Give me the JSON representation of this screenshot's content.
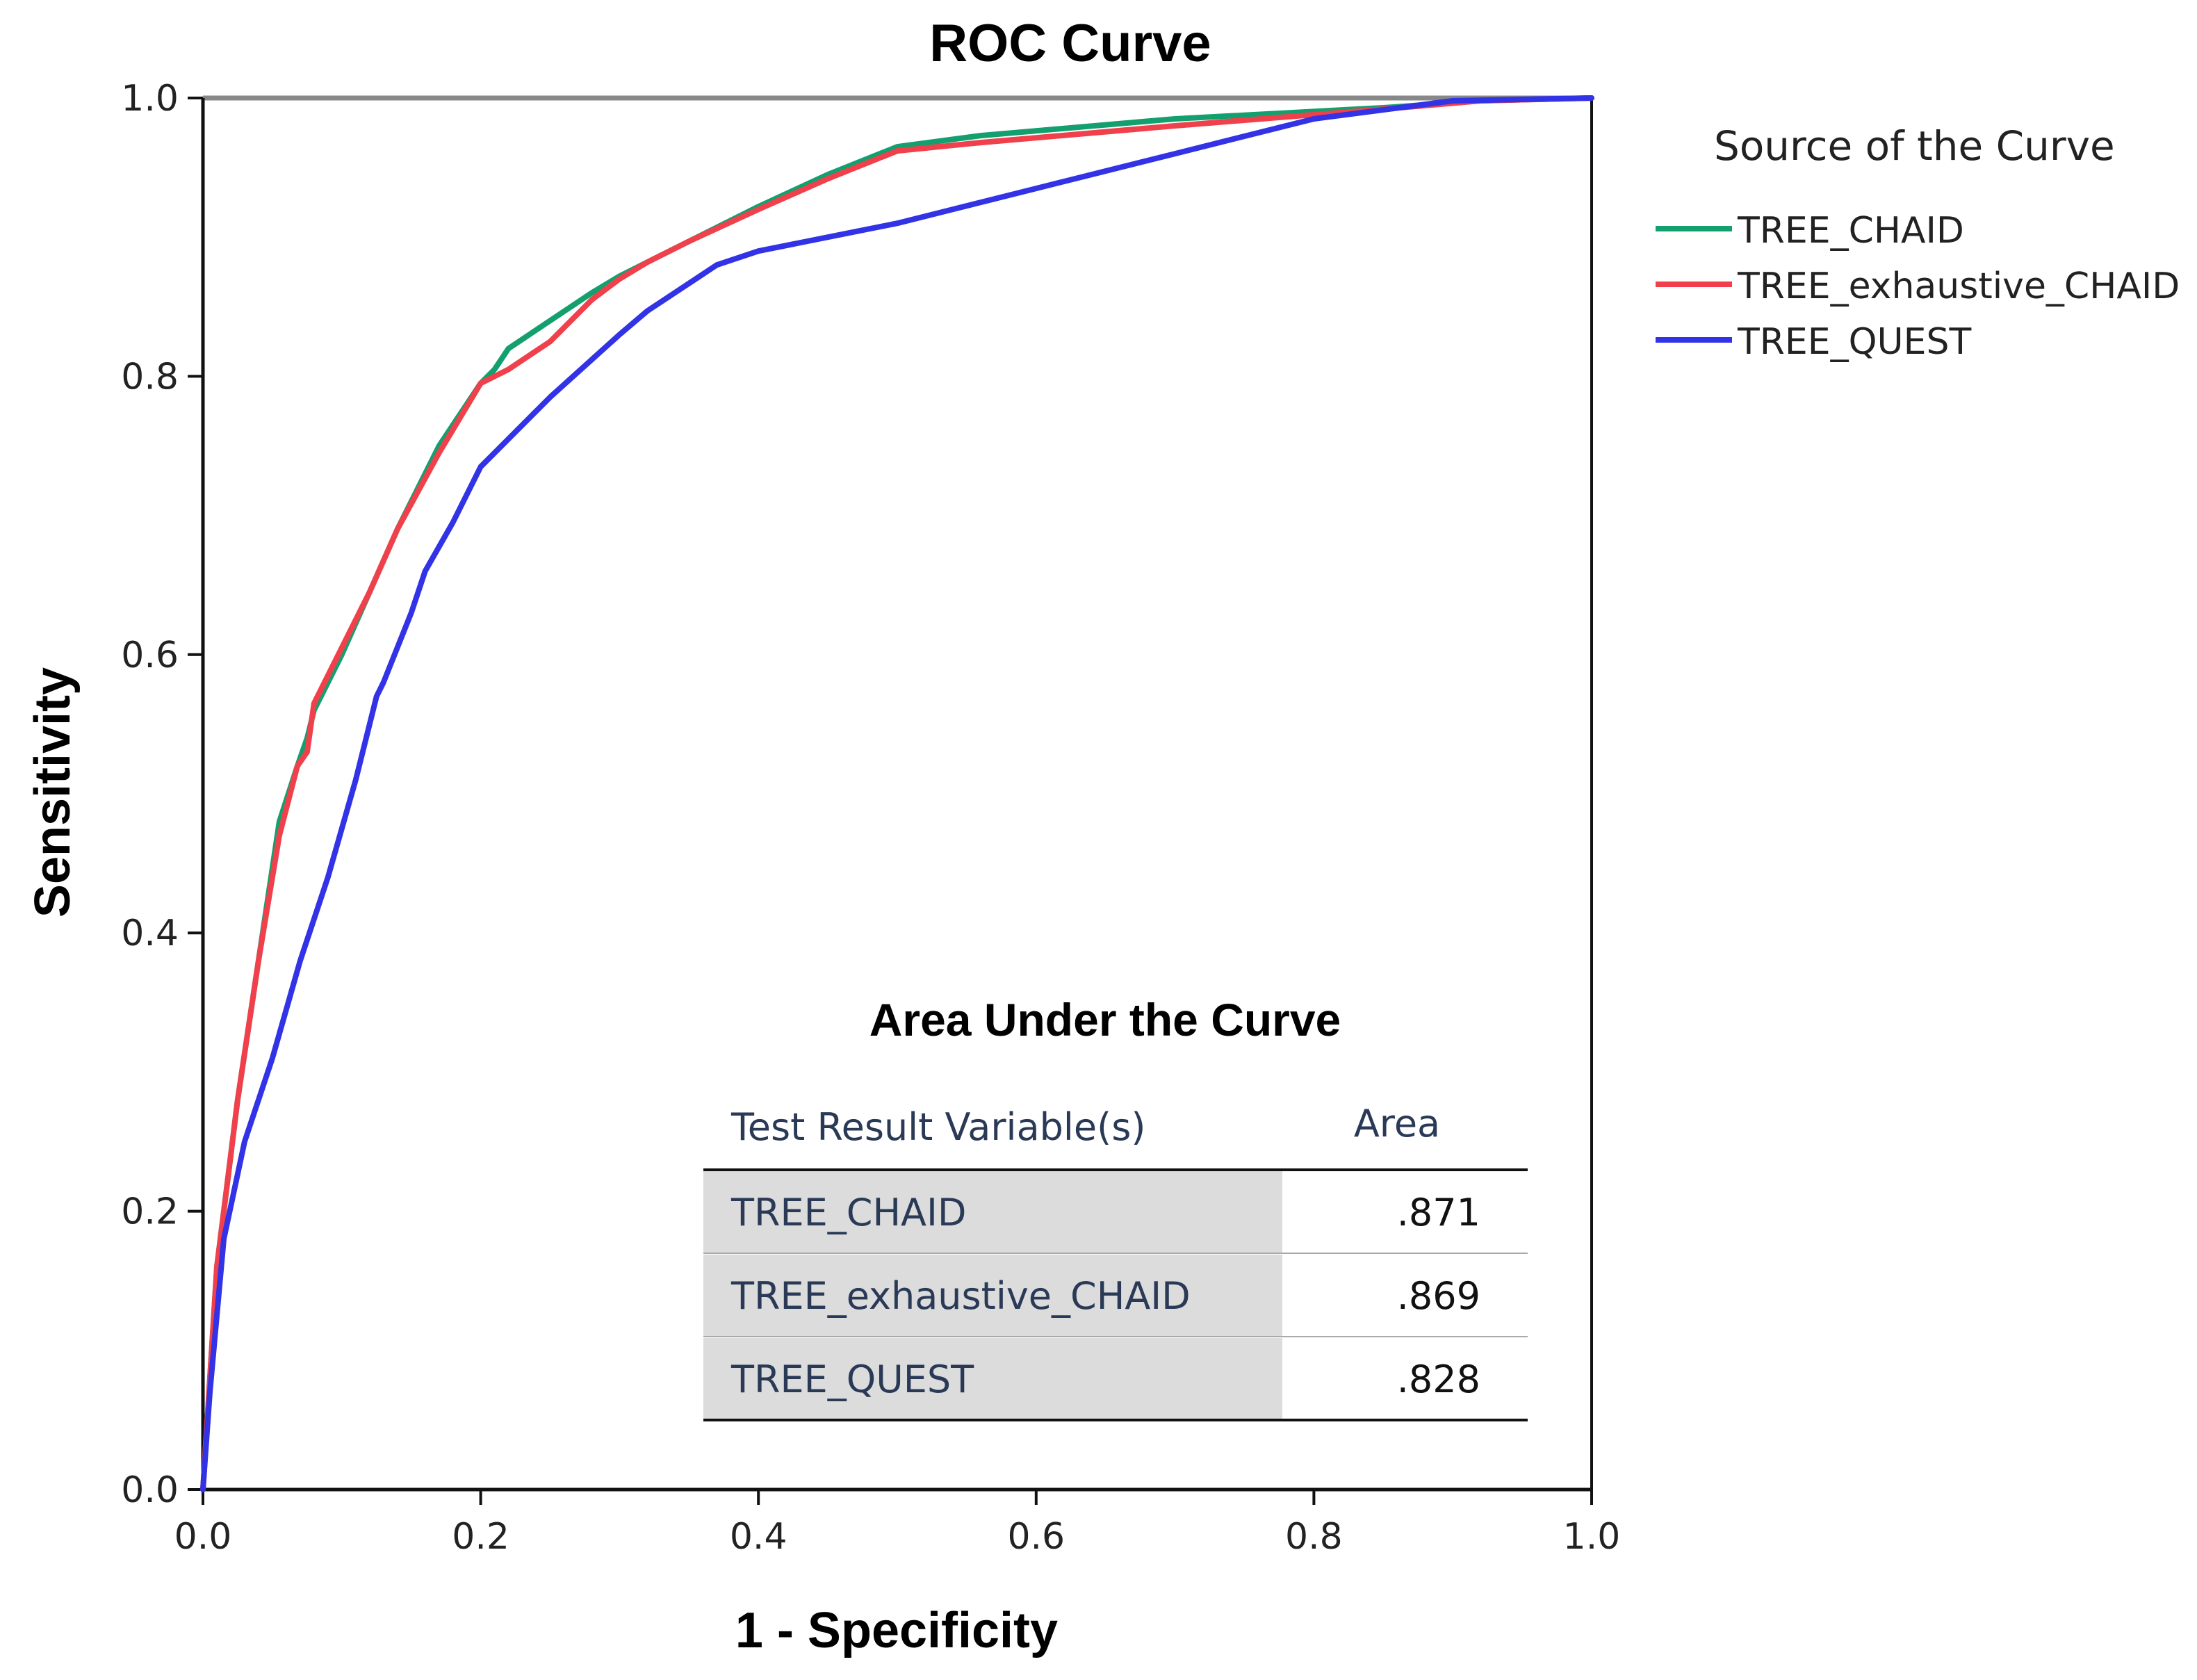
{
  "chart_data": {
    "type": "line",
    "title": "ROC Curve",
    "xlabel": "1 - Specificity",
    "ylabel": "Sensitivity",
    "xlim": [
      0,
      1
    ],
    "ylim": [
      0,
      1
    ],
    "x_ticks": [
      "0.0",
      "0.2",
      "0.4",
      "0.6",
      "0.8",
      "1.0"
    ],
    "y_ticks": [
      "0.0",
      "0.2",
      "0.4",
      "0.6",
      "0.8",
      "1.0"
    ],
    "grid": false,
    "legend": {
      "title": "Source of the Curve",
      "position": "right"
    },
    "series": [
      {
        "name": "TREE_CHAID",
        "color": "#14a06e",
        "x": [
          0.0,
          0.005,
          0.01,
          0.015,
          0.025,
          0.04,
          0.055,
          0.068,
          0.075,
          0.08,
          0.1,
          0.12,
          0.14,
          0.17,
          0.2,
          0.21,
          0.22,
          0.25,
          0.28,
          0.3,
          0.32,
          0.35,
          0.4,
          0.45,
          0.5,
          0.56,
          0.7,
          0.85,
          0.92,
          1.0
        ],
        "y": [
          0.0,
          0.08,
          0.16,
          0.2,
          0.28,
          0.38,
          0.48,
          0.52,
          0.54,
          0.56,
          0.6,
          0.645,
          0.69,
          0.75,
          0.795,
          0.805,
          0.82,
          0.84,
          0.86,
          0.872,
          0.882,
          0.897,
          0.922,
          0.945,
          0.965,
          0.973,
          0.985,
          0.993,
          0.998,
          1.0
        ]
      },
      {
        "name": "TREE_exhaustive_CHAID",
        "color": "#f0404c",
        "x": [
          0.0,
          0.005,
          0.01,
          0.015,
          0.025,
          0.04,
          0.055,
          0.068,
          0.075,
          0.08,
          0.1,
          0.12,
          0.14,
          0.17,
          0.2,
          0.21,
          0.22,
          0.25,
          0.28,
          0.3,
          0.32,
          0.35,
          0.4,
          0.45,
          0.5,
          0.56,
          0.7,
          0.85,
          0.92,
          1.0
        ],
        "y": [
          0.0,
          0.08,
          0.16,
          0.2,
          0.28,
          0.38,
          0.47,
          0.52,
          0.53,
          0.565,
          0.605,
          0.645,
          0.69,
          0.745,
          0.795,
          0.8,
          0.805,
          0.825,
          0.855,
          0.87,
          0.882,
          0.897,
          0.92,
          0.942,
          0.962,
          0.968,
          0.98,
          0.992,
          0.998,
          1.0
        ]
      },
      {
        "name": "TREE_QUEST",
        "color": "#3232e6",
        "x": [
          0.0,
          0.005,
          0.015,
          0.03,
          0.05,
          0.07,
          0.09,
          0.11,
          0.125,
          0.13,
          0.15,
          0.16,
          0.18,
          0.2,
          0.21,
          0.25,
          0.3,
          0.32,
          0.37,
          0.4,
          0.5,
          0.6,
          0.7,
          0.8,
          0.9,
          1.0
        ],
        "y": [
          0.0,
          0.07,
          0.18,
          0.25,
          0.31,
          0.38,
          0.44,
          0.51,
          0.57,
          0.58,
          0.63,
          0.66,
          0.695,
          0.735,
          0.745,
          0.785,
          0.83,
          0.847,
          0.88,
          0.89,
          0.91,
          0.935,
          0.96,
          0.985,
          0.998,
          1.0
        ]
      }
    ],
    "auc_table": {
      "title": "Area Under the Curve",
      "col_headers": [
        "Test Result Variable(s)",
        "Area"
      ],
      "rows": [
        {
          "variable": "TREE_CHAID",
          "area": ".871"
        },
        {
          "variable": "TREE_exhaustive_CHAID",
          "area": ".869"
        },
        {
          "variable": "TREE_QUEST",
          "area": ".828"
        }
      ]
    }
  }
}
